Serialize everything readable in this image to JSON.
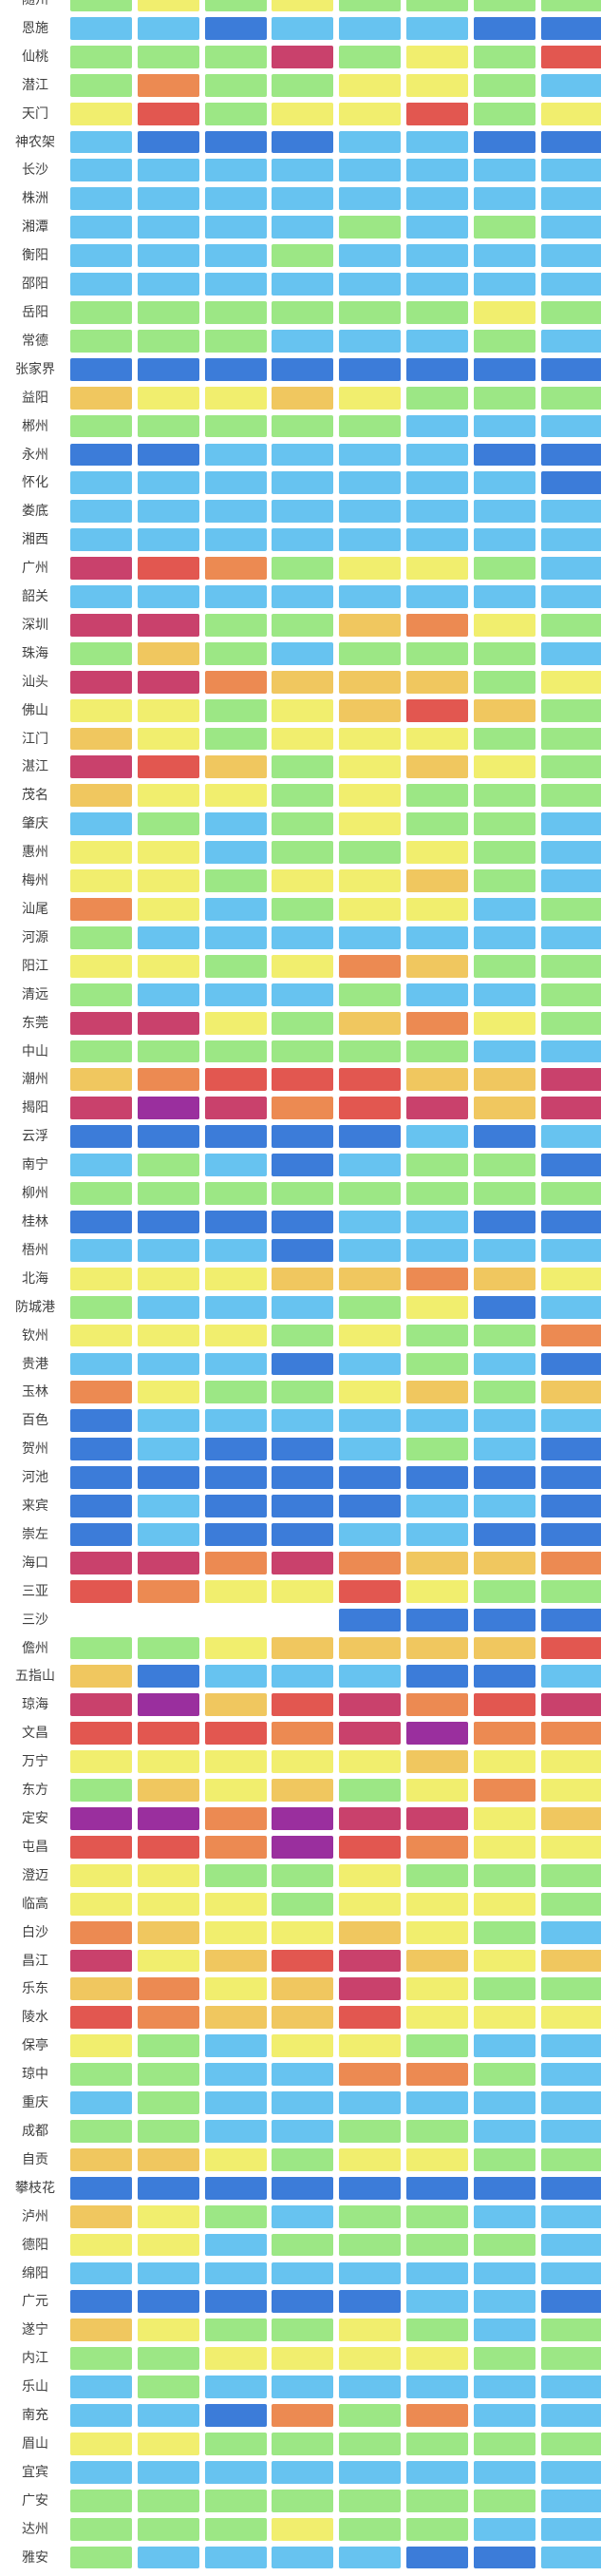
{
  "chart_data": {
    "type": "heatmap",
    "title": "",
    "columns": 8,
    "column_labels_visible": false,
    "legend_position": "none",
    "grid": "gaps-white",
    "palette": {
      "B": "#3c7cd9",
      "L": "#67c3f0",
      "G": "#9ce785",
      "Y": "#f1ee6e",
      "A": "#f0c75f",
      "O": "#ec8a52",
      "R": "#e25750",
      "C": "#c9416c",
      "P": "#9a2f9e"
    },
    "palette_note": "B=dark-blue L=light-blue G=green Y=yellow A=amber O=orange R=red C=crimson P=purple null=no-data",
    "cities": [
      "随州",
      "恩施",
      "仙桃",
      "潜江",
      "天门",
      "神农架",
      "长沙",
      "株洲",
      "湘潭",
      "衡阳",
      "邵阳",
      "岳阳",
      "常德",
      "张家界",
      "益阳",
      "郴州",
      "永州",
      "怀化",
      "娄底",
      "湘西",
      "广州",
      "韶关",
      "深圳",
      "珠海",
      "汕头",
      "佛山",
      "江门",
      "湛江",
      "茂名",
      "肇庆",
      "惠州",
      "梅州",
      "汕尾",
      "河源",
      "阳江",
      "清远",
      "东莞",
      "中山",
      "潮州",
      "揭阳",
      "云浮",
      "南宁",
      "柳州",
      "桂林",
      "梧州",
      "北海",
      "防城港",
      "钦州",
      "贵港",
      "玉林",
      "百色",
      "贺州",
      "河池",
      "来宾",
      "崇左",
      "海口",
      "三亚",
      "三沙",
      "儋州",
      "五指山",
      "琼海",
      "文昌",
      "万宁",
      "东方",
      "定安",
      "屯昌",
      "澄迈",
      "临高",
      "白沙",
      "昌江",
      "乐东",
      "陵水",
      "保亭",
      "琼中",
      "重庆",
      "成都",
      "自贡",
      "攀枝花",
      "泸州",
      "德阳",
      "绵阳",
      "广元",
      "遂宁",
      "内江",
      "乐山",
      "南充",
      "眉山",
      "宜宾",
      "广安",
      "达州",
      "雅安"
    ],
    "cells": [
      [
        "G",
        "Y",
        "G",
        "Y",
        "G",
        "G",
        "G",
        "G"
      ],
      [
        "L",
        "L",
        "B",
        "L",
        "L",
        "L",
        "B",
        "B"
      ],
      [
        "G",
        "G",
        "G",
        "C",
        "G",
        "Y",
        "G",
        "R"
      ],
      [
        "G",
        "O",
        "G",
        "G",
        "Y",
        "Y",
        "G",
        "L"
      ],
      [
        "Y",
        "R",
        "G",
        "Y",
        "Y",
        "R",
        "G",
        "Y"
      ],
      [
        "L",
        "B",
        "B",
        "B",
        "L",
        "L",
        "B",
        "B"
      ],
      [
        "L",
        "L",
        "L",
        "L",
        "L",
        "L",
        "L",
        "L"
      ],
      [
        "L",
        "L",
        "L",
        "L",
        "L",
        "L",
        "L",
        "L"
      ],
      [
        "L",
        "L",
        "L",
        "L",
        "G",
        "L",
        "G",
        "L"
      ],
      [
        "L",
        "L",
        "L",
        "G",
        "L",
        "L",
        "L",
        "L"
      ],
      [
        "L",
        "L",
        "L",
        "L",
        "L",
        "L",
        "L",
        "L"
      ],
      [
        "G",
        "G",
        "G",
        "G",
        "G",
        "G",
        "Y",
        "G"
      ],
      [
        "G",
        "G",
        "G",
        "L",
        "L",
        "L",
        "G",
        "L"
      ],
      [
        "B",
        "B",
        "B",
        "B",
        "B",
        "B",
        "B",
        "B"
      ],
      [
        "A",
        "Y",
        "Y",
        "A",
        "Y",
        "G",
        "G",
        "G"
      ],
      [
        "G",
        "G",
        "G",
        "G",
        "G",
        "L",
        "L",
        "L"
      ],
      [
        "B",
        "B",
        "L",
        "L",
        "L",
        "L",
        "B",
        "B"
      ],
      [
        "L",
        "L",
        "L",
        "L",
        "L",
        "L",
        "L",
        "B"
      ],
      [
        "L",
        "L",
        "L",
        "L",
        "L",
        "L",
        "L",
        "L"
      ],
      [
        "L",
        "L",
        "L",
        "L",
        "L",
        "L",
        "L",
        "L"
      ],
      [
        "C",
        "R",
        "O",
        "G",
        "Y",
        "Y",
        "G",
        "L"
      ],
      [
        "L",
        "L",
        "L",
        "L",
        "L",
        "L",
        "L",
        "L"
      ],
      [
        "C",
        "C",
        "G",
        "G",
        "A",
        "O",
        "Y",
        "G"
      ],
      [
        "G",
        "A",
        "G",
        "L",
        "G",
        "G",
        "G",
        "L"
      ],
      [
        "C",
        "C",
        "O",
        "A",
        "A",
        "A",
        "G",
        "Y"
      ],
      [
        "Y",
        "Y",
        "G",
        "Y",
        "A",
        "R",
        "A",
        "G"
      ],
      [
        "A",
        "Y",
        "G",
        "Y",
        "Y",
        "Y",
        "G",
        "G"
      ],
      [
        "C",
        "R",
        "A",
        "G",
        "Y",
        "A",
        "Y",
        "G"
      ],
      [
        "A",
        "Y",
        "Y",
        "G",
        "Y",
        "G",
        "G",
        "G"
      ],
      [
        "L",
        "G",
        "L",
        "G",
        "Y",
        "G",
        "G",
        "L"
      ],
      [
        "Y",
        "Y",
        "L",
        "G",
        "G",
        "Y",
        "G",
        "L"
      ],
      [
        "Y",
        "Y",
        "G",
        "Y",
        "Y",
        "A",
        "G",
        "L"
      ],
      [
        "O",
        "Y",
        "L",
        "G",
        "Y",
        "Y",
        "L",
        "G"
      ],
      [
        "G",
        "L",
        "L",
        "L",
        "L",
        "L",
        "L",
        "L"
      ],
      [
        "Y",
        "Y",
        "G",
        "Y",
        "O",
        "A",
        "G",
        "G"
      ],
      [
        "G",
        "L",
        "L",
        "L",
        "G",
        "L",
        "L",
        "G"
      ],
      [
        "C",
        "C",
        "Y",
        "G",
        "A",
        "O",
        "Y",
        "G"
      ],
      [
        "G",
        "G",
        "G",
        "G",
        "G",
        "G",
        "L",
        "L"
      ],
      [
        "A",
        "O",
        "R",
        "R",
        "R",
        "A",
        "A",
        "C"
      ],
      [
        "C",
        "P",
        "C",
        "O",
        "R",
        "C",
        "A",
        "C"
      ],
      [
        "B",
        "B",
        "B",
        "B",
        "B",
        "L",
        "B",
        "L"
      ],
      [
        "L",
        "G",
        "L",
        "B",
        "L",
        "G",
        "G",
        "B"
      ],
      [
        "G",
        "G",
        "G",
        "G",
        "G",
        "G",
        "G",
        "G"
      ],
      [
        "B",
        "B",
        "B",
        "B",
        "L",
        "L",
        "B",
        "B"
      ],
      [
        "L",
        "L",
        "L",
        "B",
        "L",
        "L",
        "L",
        "L"
      ],
      [
        "Y",
        "Y",
        "Y",
        "A",
        "A",
        "O",
        "A",
        "Y"
      ],
      [
        "G",
        "L",
        "L",
        "L",
        "G",
        "Y",
        "B",
        "L"
      ],
      [
        "Y",
        "Y",
        "Y",
        "G",
        "Y",
        "G",
        "G",
        "O"
      ],
      [
        "L",
        "L",
        "L",
        "B",
        "L",
        "G",
        "L",
        "B"
      ],
      [
        "O",
        "Y",
        "G",
        "G",
        "Y",
        "A",
        "G",
        "A"
      ],
      [
        "B",
        "L",
        "L",
        "L",
        "L",
        "L",
        "L",
        "L"
      ],
      [
        "B",
        "L",
        "B",
        "B",
        "L",
        "G",
        "L",
        "B"
      ],
      [
        "B",
        "B",
        "B",
        "B",
        "B",
        "B",
        "B",
        "B"
      ],
      [
        "B",
        "L",
        "B",
        "B",
        "B",
        "L",
        "L",
        "B"
      ],
      [
        "B",
        "L",
        "B",
        "B",
        "L",
        "L",
        "B",
        "B"
      ],
      [
        "C",
        "C",
        "O",
        "C",
        "O",
        "A",
        "A",
        "O"
      ],
      [
        "R",
        "O",
        "Y",
        "Y",
        "R",
        "Y",
        "G",
        "G"
      ],
      [
        null,
        null,
        null,
        null,
        "B",
        "B",
        "B",
        "B"
      ],
      [
        "G",
        "G",
        "Y",
        "A",
        "A",
        "A",
        "A",
        "R"
      ],
      [
        "A",
        "B",
        "L",
        "L",
        "L",
        "B",
        "B",
        "L"
      ],
      [
        "C",
        "P",
        "A",
        "R",
        "C",
        "O",
        "R",
        "C"
      ],
      [
        "R",
        "R",
        "R",
        "O",
        "C",
        "P",
        "O",
        "O"
      ],
      [
        "Y",
        "Y",
        "Y",
        "Y",
        "Y",
        "A",
        "Y",
        "Y"
      ],
      [
        "G",
        "A",
        "Y",
        "A",
        "G",
        "Y",
        "O",
        "Y"
      ],
      [
        "P",
        "P",
        "O",
        "P",
        "C",
        "C",
        "Y",
        "A"
      ],
      [
        "R",
        "R",
        "O",
        "P",
        "R",
        "O",
        "Y",
        "Y"
      ],
      [
        "Y",
        "Y",
        "G",
        "G",
        "Y",
        "G",
        "G",
        "G"
      ],
      [
        "Y",
        "Y",
        "Y",
        "G",
        "Y",
        "Y",
        "Y",
        "G"
      ],
      [
        "O",
        "A",
        "Y",
        "Y",
        "A",
        "Y",
        "G",
        "L"
      ],
      [
        "C",
        "Y",
        "A",
        "R",
        "C",
        "A",
        "Y",
        "A"
      ],
      [
        "A",
        "O",
        "Y",
        "A",
        "C",
        "Y",
        "G",
        "G"
      ],
      [
        "R",
        "O",
        "A",
        "A",
        "R",
        "Y",
        "Y",
        "Y"
      ],
      [
        "Y",
        "G",
        "L",
        "Y",
        "Y",
        "G",
        "L",
        "L"
      ],
      [
        "G",
        "G",
        "L",
        "L",
        "O",
        "O",
        "G",
        "L"
      ],
      [
        "L",
        "G",
        "L",
        "L",
        "L",
        "L",
        "L",
        "L"
      ],
      [
        "G",
        "G",
        "L",
        "L",
        "G",
        "G",
        "L",
        "L"
      ],
      [
        "A",
        "A",
        "Y",
        "G",
        "Y",
        "Y",
        "G",
        "G"
      ],
      [
        "B",
        "B",
        "B",
        "B",
        "B",
        "B",
        "B",
        "B"
      ],
      [
        "A",
        "Y",
        "G",
        "L",
        "G",
        "G",
        "L",
        "L"
      ],
      [
        "Y",
        "Y",
        "L",
        "G",
        "G",
        "G",
        "G",
        "L"
      ],
      [
        "L",
        "L",
        "L",
        "L",
        "L",
        "L",
        "L",
        "L"
      ],
      [
        "B",
        "B",
        "B",
        "B",
        "B",
        "L",
        "L",
        "B"
      ],
      [
        "A",
        "Y",
        "G",
        "G",
        "Y",
        "G",
        "L",
        "G"
      ],
      [
        "G",
        "G",
        "Y",
        "Y",
        "Y",
        "Y",
        "G",
        "G"
      ],
      [
        "L",
        "G",
        "L",
        "L",
        "L",
        "L",
        "L",
        "L"
      ],
      [
        "L",
        "L",
        "B",
        "O",
        "G",
        "O",
        "L",
        "L"
      ],
      [
        "Y",
        "Y",
        "G",
        "G",
        "G",
        "G",
        "G",
        "G"
      ],
      [
        "L",
        "L",
        "L",
        "L",
        "L",
        "L",
        "L",
        "L"
      ],
      [
        "G",
        "G",
        "G",
        "G",
        "G",
        "G",
        "G",
        "L"
      ],
      [
        "G",
        "G",
        "G",
        "Y",
        "G",
        "G",
        "L",
        "L"
      ],
      [
        "G",
        "L",
        "L",
        "L",
        "L",
        "B",
        "B",
        "L"
      ]
    ]
  }
}
